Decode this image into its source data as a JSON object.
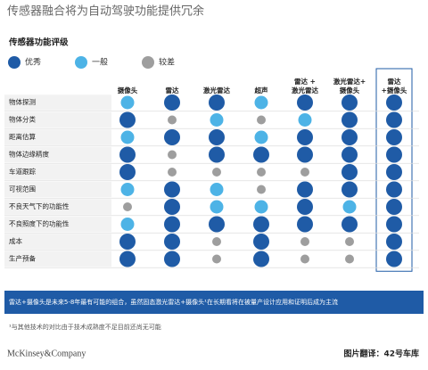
{
  "title": "传感器融合将为自动驾驶功能提供冗余",
  "subtitle": "传感器功能评级",
  "legend": [
    {
      "label": "优秀",
      "color": "#1f5ba6"
    },
    {
      "label": "一般",
      "color": "#4db3e6"
    },
    {
      "label": "较差",
      "color": "#9e9e9e"
    }
  ],
  "columns": [
    [
      "摄像头"
    ],
    [
      "雷达"
    ],
    [
      "激光雷达"
    ],
    [
      "超声"
    ],
    [
      "雷达 +",
      "激光雷达"
    ],
    [
      "激光雷达+",
      "摄像头"
    ],
    [
      "雷达",
      "+摄像头"
    ]
  ],
  "rows": [
    {
      "label": "物体探测",
      "ratings": [
        "一般",
        "优秀",
        "优秀",
        "一般",
        "优秀",
        "优秀",
        "优秀"
      ]
    },
    {
      "label": "物体分类",
      "ratings": [
        "优秀",
        "较差",
        "一般",
        "较差",
        "一般",
        "优秀",
        "优秀"
      ]
    },
    {
      "label": "距离估算",
      "ratings": [
        "一般",
        "优秀",
        "优秀",
        "一般",
        "优秀",
        "优秀",
        "优秀"
      ]
    },
    {
      "label": "物体边缘精度",
      "ratings": [
        "优秀",
        "较差",
        "优秀",
        "优秀",
        "优秀",
        "优秀",
        "优秀"
      ]
    },
    {
      "label": "车道跟踪",
      "ratings": [
        "优秀",
        "较差",
        "较差",
        "较差",
        "较差",
        "优秀",
        "优秀"
      ]
    },
    {
      "label": "可视范围",
      "ratings": [
        "一般",
        "优秀",
        "一般",
        "较差",
        "优秀",
        "优秀",
        "优秀"
      ]
    },
    {
      "label": "不良天气下的功能性",
      "ratings": [
        "较差",
        "优秀",
        "一般",
        "一般",
        "优秀",
        "一般",
        "优秀"
      ]
    },
    {
      "label": "不良照度下的功能性",
      "ratings": [
        "一般",
        "优秀",
        "优秀",
        "优秀",
        "优秀",
        "优秀",
        "优秀"
      ]
    },
    {
      "label": "成本",
      "ratings": [
        "优秀",
        "优秀",
        "较差",
        "优秀",
        "较差",
        "较差",
        "优秀"
      ]
    },
    {
      "label": "生产预备",
      "ratings": [
        "优秀",
        "优秀",
        "较差",
        "优秀",
        "较差",
        "较差",
        "优秀"
      ]
    }
  ],
  "banner": "雷达+摄像头是未来5-8年最有可能的组合，虽然固态激光雷达+摄像头¹在长期看将在被量产设计应用和证明后成为主流",
  "footnote": "¹与其他技术的对比由于技术成熟度不足目前还尚无可能",
  "brand": "McKinsey&Company",
  "credit": "图片翻译：42号车库"
}
